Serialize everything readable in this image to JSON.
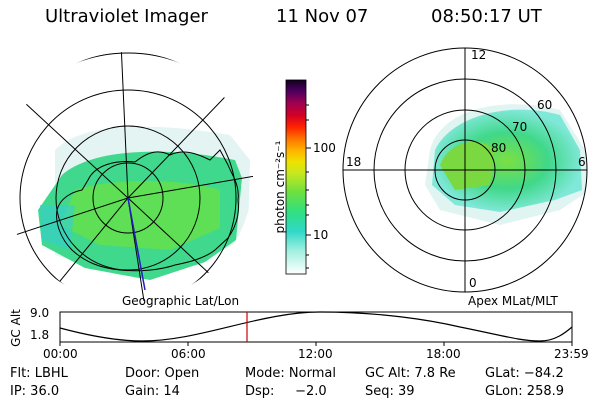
{
  "header": {
    "title": "Ultraviolet Imager",
    "date": "11 Nov 07",
    "time": "08:50:17 UT"
  },
  "left_panel": {
    "caption": "Geographic Lat/Lon"
  },
  "right_panel": {
    "caption": "Apex MLat/MLT",
    "mlt_labels": {
      "top": "12",
      "left": "18",
      "right": "6",
      "bottom": "0"
    },
    "lat_labels": [
      "60",
      "70",
      "80"
    ]
  },
  "colorbar": {
    "unit": "photon cm⁻²s⁻¹",
    "ticks": [
      "100",
      "10"
    ],
    "scale": "log"
  },
  "altitude_plot": {
    "ylabel": "GC Alt",
    "yticks": [
      "9.0",
      "1.8"
    ],
    "xticks": [
      "00:00",
      "06:00",
      "12:00",
      "18:00",
      "23:59"
    ],
    "current_time_marker": "08:50:17",
    "marker_color": "#d00000"
  },
  "info": {
    "filter": "Flt: LBHL",
    "door": "Door: Open",
    "mode": "Mode: Normal",
    "gc_alt": "GC Alt: 7.8 Re",
    "glat": "GLat: −84.2",
    "ip": "IP: 36.0",
    "gain": "Gain: 14",
    "dsp": "Dsp:     −2.0",
    "seq": "Seq: 39",
    "glon": "GLon: 258.9"
  }
}
